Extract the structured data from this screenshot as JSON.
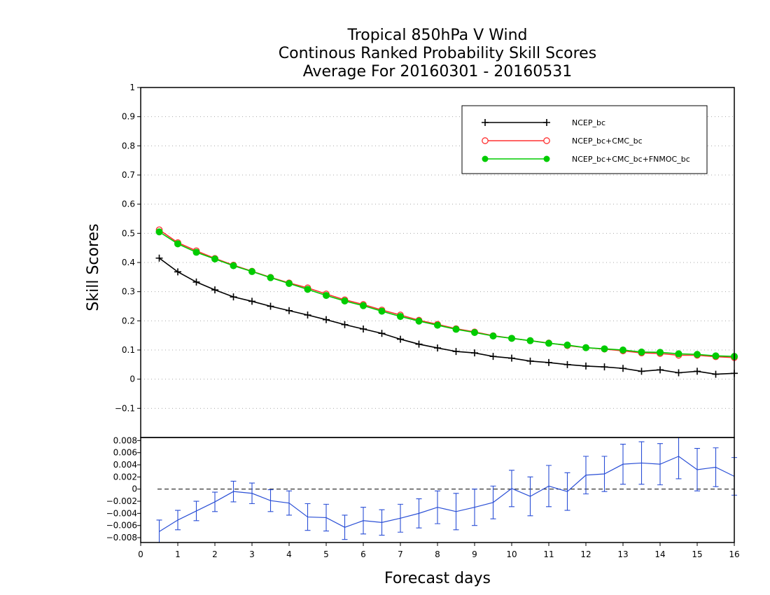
{
  "chart_data": [
    {
      "type": "line",
      "title": [
        "Tropical 850hPa V Wind",
        "Continous Ranked Probability Skill Scores",
        "Average For 20160301 - 20160531"
      ],
      "ylabel": "Skill Scores",
      "xlabel": "Forecast days",
      "xlim": [
        0,
        16
      ],
      "ylim": [
        -0.2,
        1
      ],
      "x_ticks": [
        "0",
        "1",
        "2",
        "3",
        "4",
        "5",
        "6",
        "7",
        "8",
        "9",
        "10",
        "11",
        "12",
        "13",
        "14",
        "15",
        "16"
      ],
      "y_ticks": [
        "1",
        "0.9",
        "0.8",
        "0.7",
        "0.6",
        "0.5",
        "0.4",
        "0.3",
        "0.2",
        "0.1",
        "0",
        "−0.1"
      ],
      "y_tick_values": [
        1,
        0.9,
        0.8,
        0.7,
        0.6,
        0.5,
        0.4,
        0.3,
        0.2,
        0.1,
        0,
        -0.1
      ],
      "grid": "horizontal dotted",
      "legend_position": "top-right",
      "x": [
        0.5,
        1,
        1.5,
        2,
        2.5,
        3,
        3.5,
        4,
        4.5,
        5,
        5.5,
        6,
        6.5,
        7,
        7.5,
        8,
        8.5,
        9,
        9.5,
        10,
        10.5,
        11,
        11.5,
        12,
        12.5,
        13,
        13.5,
        14,
        14.5,
        15,
        15.5,
        16
      ],
      "series": [
        {
          "name": "NCEP_bc",
          "color": "#000000",
          "marker": "plus",
          "values": [
            0.415,
            0.368,
            0.333,
            0.306,
            0.282,
            0.267,
            0.25,
            0.235,
            0.22,
            0.204,
            0.187,
            0.172,
            0.157,
            0.137,
            0.12,
            0.107,
            0.095,
            0.09,
            0.078,
            0.072,
            0.062,
            0.057,
            0.05,
            0.045,
            0.042,
            0.037,
            0.027,
            0.032,
            0.022,
            0.027,
            0.017,
            0.02
          ]
        },
        {
          "name": "NCEP_bc+CMC_bc",
          "color": "#ff3030",
          "marker": "open-circle",
          "values": [
            0.512,
            0.468,
            0.44,
            0.414,
            0.391,
            0.37,
            0.349,
            0.33,
            0.313,
            0.292,
            0.272,
            0.256,
            0.237,
            0.22,
            0.202,
            0.188,
            0.173,
            0.162,
            0.149,
            0.14,
            0.132,
            0.124,
            0.115,
            0.108,
            0.103,
            0.097,
            0.09,
            0.088,
            0.082,
            0.082,
            0.077,
            0.074
          ]
        },
        {
          "name": "NCEP_bc+CMC_bc+FNMOC_bc",
          "color": "#00cc00",
          "marker": "filled-circle",
          "values": [
            0.505,
            0.464,
            0.435,
            0.412,
            0.389,
            0.369,
            0.348,
            0.328,
            0.308,
            0.287,
            0.268,
            0.252,
            0.233,
            0.215,
            0.199,
            0.185,
            0.171,
            0.16,
            0.148,
            0.14,
            0.132,
            0.123,
            0.117,
            0.108,
            0.104,
            0.1,
            0.093,
            0.092,
            0.087,
            0.085,
            0.08,
            0.078
          ]
        }
      ]
    },
    {
      "type": "line",
      "xlim": [
        0,
        16
      ],
      "ylim": [
        -0.0088,
        0.0085
      ],
      "y_ticks": [
        "0.008",
        "0.006",
        "0.004",
        "0.002",
        "0",
        "−0.002",
        "−0.004",
        "−0.006",
        "−0.008"
      ],
      "y_tick_values": [
        0.008,
        0.006,
        0.004,
        0.002,
        0,
        -0.002,
        -0.004,
        -0.006,
        -0.008
      ],
      "zero_line": "dashed",
      "x": [
        0.5,
        1,
        1.5,
        2,
        2.5,
        3,
        3.5,
        4,
        4.5,
        5,
        5.5,
        6,
        6.5,
        7,
        7.5,
        8,
        8.5,
        9,
        9.5,
        10,
        10.5,
        11,
        11.5,
        12,
        12.5,
        13,
        13.5,
        14,
        14.5,
        15,
        15.5,
        16
      ],
      "series": [
        {
          "color": "#2a4fd6",
          "marker": "error-bars",
          "values": [
            -0.007,
            -0.0051,
            -0.0036,
            -0.0021,
            -0.0004,
            -0.0007,
            -0.0019,
            -0.0023,
            -0.0046,
            -0.0047,
            -0.0063,
            -0.0052,
            -0.0055,
            -0.0048,
            -0.004,
            -0.003,
            -0.0037,
            -0.003,
            -0.0022,
            0.0001,
            -0.0012,
            0.0005,
            -0.0004,
            0.0023,
            0.0025,
            0.0041,
            0.0043,
            0.0041,
            0.0054,
            0.0032,
            0.0036,
            0.0021
          ],
          "error": [
            0.0019,
            0.0016,
            0.0016,
            0.0016,
            0.0017,
            0.0017,
            0.0018,
            0.002,
            0.0022,
            0.0022,
            0.002,
            0.0022,
            0.0021,
            0.0023,
            0.0024,
            0.0027,
            0.003,
            0.003,
            0.0027,
            0.003,
            0.0032,
            0.0034,
            0.0031,
            0.0031,
            0.0029,
            0.0033,
            0.0035,
            0.0034,
            0.0037,
            0.0035,
            0.0032,
            0.0031
          ]
        }
      ]
    }
  ]
}
